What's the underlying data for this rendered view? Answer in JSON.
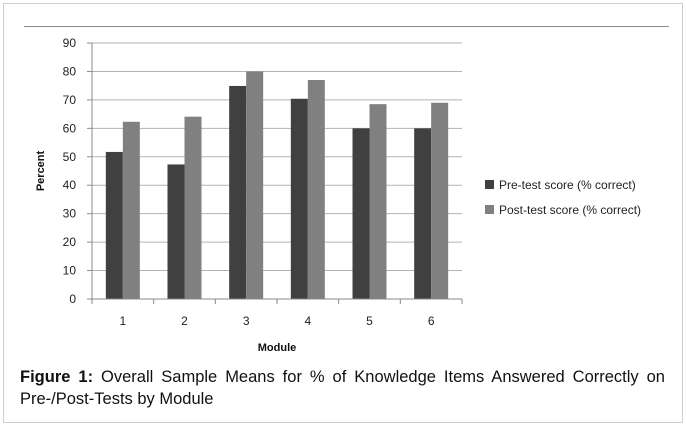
{
  "chart_data": {
    "type": "bar",
    "categories": [
      "1",
      "2",
      "3",
      "4",
      "5",
      "6"
    ],
    "series": [
      {
        "name": "Pre-test score (% correct)",
        "color": "#404040",
        "values": [
          51.7,
          47.3,
          74.9,
          70.4,
          60.0,
          60.0
        ]
      },
      {
        "name": "Post-test score (% correct)",
        "color": "#808080",
        "values": [
          62.3,
          64.1,
          80.0,
          77.0,
          68.5,
          69.0
        ]
      }
    ],
    "xlabel": "Module",
    "ylabel": "Percent",
    "ylim": [
      0,
      90
    ],
    "yticks": [
      "0",
      "10",
      "20",
      "30",
      "40",
      "50",
      "60",
      "70",
      "80",
      "90"
    ],
    "grid": true,
    "legend_position": "right"
  },
  "caption": {
    "label": "Figure 1:",
    "text": " Overall Sample Means for % of Knowledge Items Answered Correctly on Pre-/Post-Tests by Module"
  }
}
